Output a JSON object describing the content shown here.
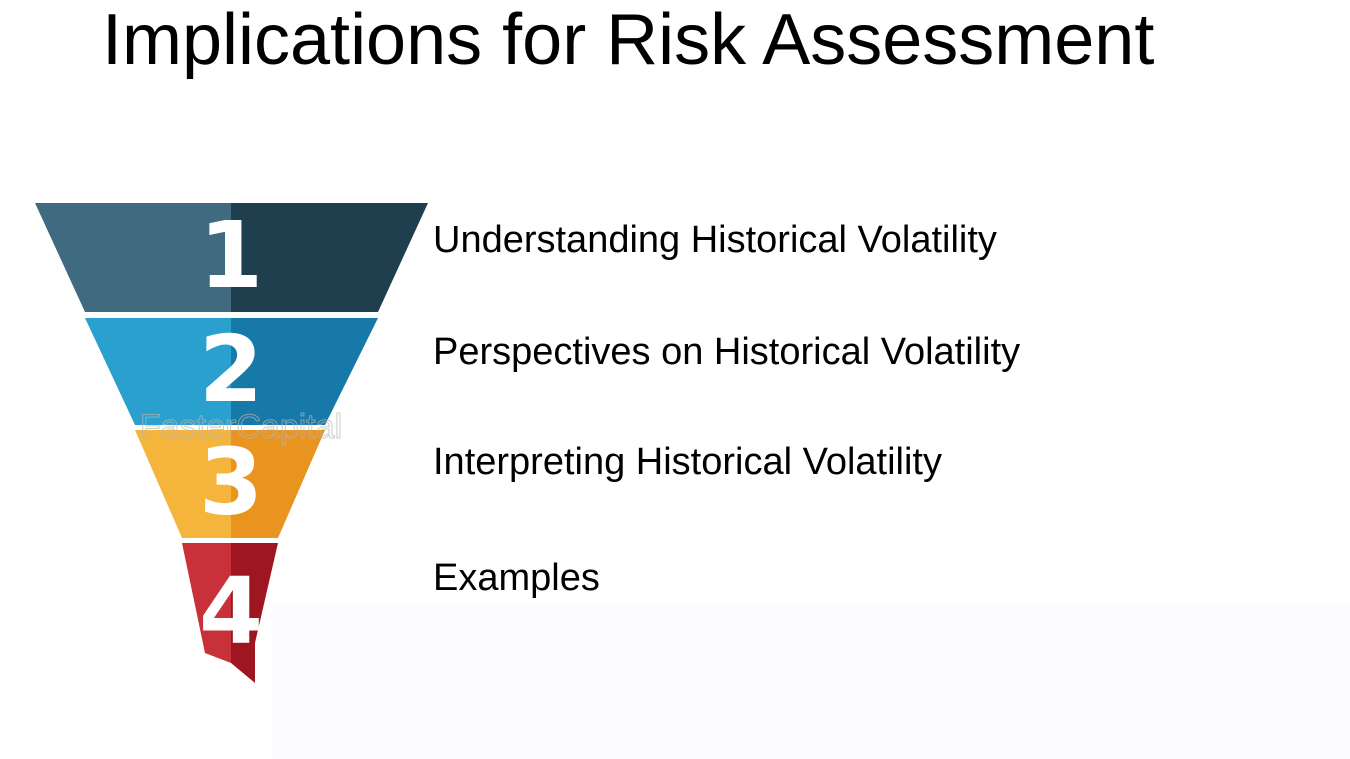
{
  "title": "Implications for Risk Assessment",
  "watermark": "FasterCapital",
  "items": [
    {
      "number": "1",
      "label": "Understanding Historical Volatility"
    },
    {
      "number": "2",
      "label": "Perspectives on Historical Volatility"
    },
    {
      "number": "3",
      "label": "Interpreting Historical Volatility"
    },
    {
      "number": "4",
      "label": "Examples"
    }
  ]
}
